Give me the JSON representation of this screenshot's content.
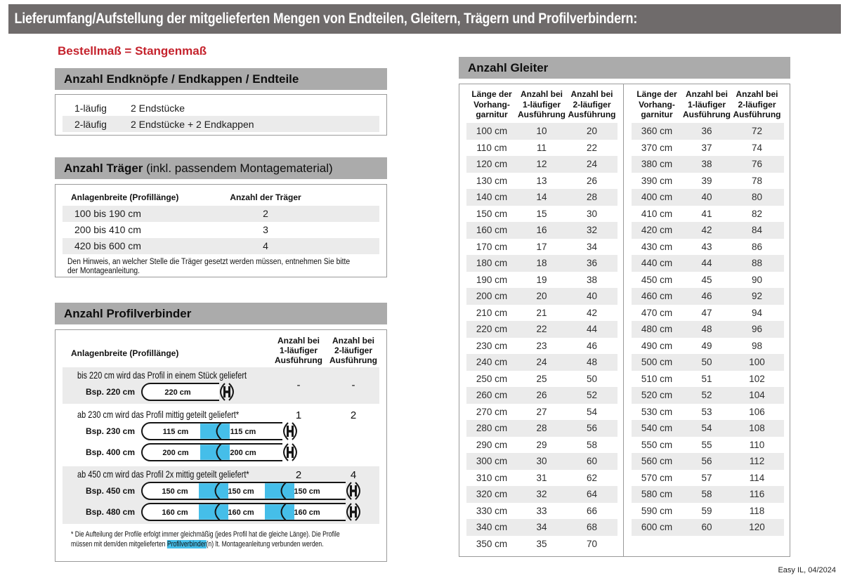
{
  "page": {
    "title": "Lieferumfang/Aufstellung der mitgelieferten Mengen von Endteilen, Gleitern, Trägern und Profilverbindern:",
    "subtitle": "Bestellmaß = Stangenmaß",
    "footer": "Easy IL, 04/2024"
  },
  "colors": {
    "accent_red": "#C5232D",
    "highlight_blue": "#45BEE9",
    "header_bar": "#6F6B6B",
    "section_bar": "#ABABAB",
    "row_stripe": "#EBEBEB",
    "box_border": "#9A9A9A"
  },
  "endteile": {
    "title": "Anzahl Endknöpfe / Endkappen / Endteile",
    "rows": [
      {
        "label": "1-läufig",
        "value": "2 Endstücke"
      },
      {
        "label": "2-läufig",
        "value": "2 Endstücke + 2 Endkappen"
      }
    ]
  },
  "traeger": {
    "title_bold": "Anzahl Träger",
    "title_rest": " (inkl. passendem Montagematerial)",
    "col1": "Anlagenbreite (Profillänge)",
    "col2": "Anzahl der Träger",
    "rows": [
      {
        "range": "100 bis 190 cm",
        "count": "2"
      },
      {
        "range": "200 bis 410 cm",
        "count": "3"
      },
      {
        "range": "420 bis 600 cm",
        "count": "4"
      }
    ],
    "note_line1": "Den Hinweis, an welcher Stelle die Träger gesetzt werden müssen, entnehmen Sie bitte",
    "note_line2": "der Montageanleitung."
  },
  "profilverbinder": {
    "title": "Anzahl Profilverbinder",
    "col_label": "Anlagenbreite (Profillänge)",
    "col_1laeufig": [
      "Anzahl bei",
      "1-läufiger",
      "Ausführung"
    ],
    "col_2laeufig": [
      "Anzahl bei",
      "2-läufiger",
      "Ausführung"
    ],
    "blocks": [
      {
        "text": "bis 220 cm wird das Profil in einem Stück geliefert",
        "v1": "-",
        "v2": "-",
        "rods": [
          {
            "label": "Bsp. 220 cm",
            "segments": [
              "220 cm"
            ]
          }
        ]
      },
      {
        "text": "ab 230 cm wird das Profil mittig geteilt geliefert*",
        "v1": "1",
        "v2": "2",
        "rods": [
          {
            "label": "Bsp. 230 cm",
            "segments": [
              "115 cm",
              "115 cm"
            ]
          },
          {
            "label": "Bsp. 400 cm",
            "segments": [
              "200 cm",
              "200 cm"
            ]
          }
        ]
      },
      {
        "text": "ab 450 cm wird das Profil 2x mittig geteilt geliefert*",
        "v1": "2",
        "v2": "4",
        "rods": [
          {
            "label": "Bsp. 450 cm",
            "segments": [
              "150 cm",
              "150 cm",
              "150 cm"
            ]
          },
          {
            "label": "Bsp. 480 cm",
            "segments": [
              "160 cm",
              "160 cm",
              "160 cm"
            ]
          }
        ]
      }
    ],
    "footnote_line1": "* Die Aufteilung der Profile erfolgt immer gleichmäßig (jedes Profil hat die gleiche Länge). Die Profile",
    "footnote_line2_pre": "müssen mit dem/den mitgelieferten ",
    "footnote_highlight": "Profilverbinder",
    "footnote_line2_post": "(n) lt. Montageanleitung verbunden werden."
  },
  "gleiter": {
    "title": "Anzahl Gleiter",
    "col_headers": [
      [
        "Länge der",
        "Vorhang-",
        "garnitur"
      ],
      [
        "Anzahl bei",
        "1-läufiger",
        "Ausführung"
      ],
      [
        "Anzahl bei",
        "2-läufiger",
        "Ausführung"
      ]
    ],
    "left_rows": [
      [
        "100 cm",
        "10",
        "20"
      ],
      [
        "110 cm",
        "11",
        "22"
      ],
      [
        "120 cm",
        "12",
        "24"
      ],
      [
        "130 cm",
        "13",
        "26"
      ],
      [
        "140 cm",
        "14",
        "28"
      ],
      [
        "150 cm",
        "15",
        "30"
      ],
      [
        "160 cm",
        "16",
        "32"
      ],
      [
        "170 cm",
        "17",
        "34"
      ],
      [
        "180 cm",
        "18",
        "36"
      ],
      [
        "190 cm",
        "19",
        "38"
      ],
      [
        "200 cm",
        "20",
        "40"
      ],
      [
        "210 cm",
        "21",
        "42"
      ],
      [
        "220 cm",
        "22",
        "44"
      ],
      [
        "230 cm",
        "23",
        "46"
      ],
      [
        "240 cm",
        "24",
        "48"
      ],
      [
        "250 cm",
        "25",
        "50"
      ],
      [
        "260 cm",
        "26",
        "52"
      ],
      [
        "270 cm",
        "27",
        "54"
      ],
      [
        "280 cm",
        "28",
        "56"
      ],
      [
        "290 cm",
        "29",
        "58"
      ],
      [
        "300 cm",
        "30",
        "60"
      ],
      [
        "310 cm",
        "31",
        "62"
      ],
      [
        "320 cm",
        "32",
        "64"
      ],
      [
        "330 cm",
        "33",
        "66"
      ],
      [
        "340 cm",
        "34",
        "68"
      ],
      [
        "350 cm",
        "35",
        "70"
      ]
    ],
    "right_rows": [
      [
        "360 cm",
        "36",
        "72"
      ],
      [
        "370 cm",
        "37",
        "74"
      ],
      [
        "380 cm",
        "38",
        "76"
      ],
      [
        "390 cm",
        "39",
        "78"
      ],
      [
        "400 cm",
        "40",
        "80"
      ],
      [
        "410 cm",
        "41",
        "82"
      ],
      [
        "420 cm",
        "42",
        "84"
      ],
      [
        "430 cm",
        "43",
        "86"
      ],
      [
        "440 cm",
        "44",
        "88"
      ],
      [
        "450 cm",
        "45",
        "90"
      ],
      [
        "460 cm",
        "46",
        "92"
      ],
      [
        "470 cm",
        "47",
        "94"
      ],
      [
        "480 cm",
        "48",
        "96"
      ],
      [
        "490 cm",
        "49",
        "98"
      ],
      [
        "500 cm",
        "50",
        "100"
      ],
      [
        "510 cm",
        "51",
        "102"
      ],
      [
        "520 cm",
        "52",
        "104"
      ],
      [
        "530 cm",
        "53",
        "106"
      ],
      [
        "540 cm",
        "54",
        "108"
      ],
      [
        "550 cm",
        "55",
        "110"
      ],
      [
        "560 cm",
        "56",
        "112"
      ],
      [
        "570 cm",
        "57",
        "114"
      ],
      [
        "580 cm",
        "58",
        "116"
      ],
      [
        "590 cm",
        "59",
        "118"
      ],
      [
        "600 cm",
        "60",
        "120"
      ]
    ]
  }
}
